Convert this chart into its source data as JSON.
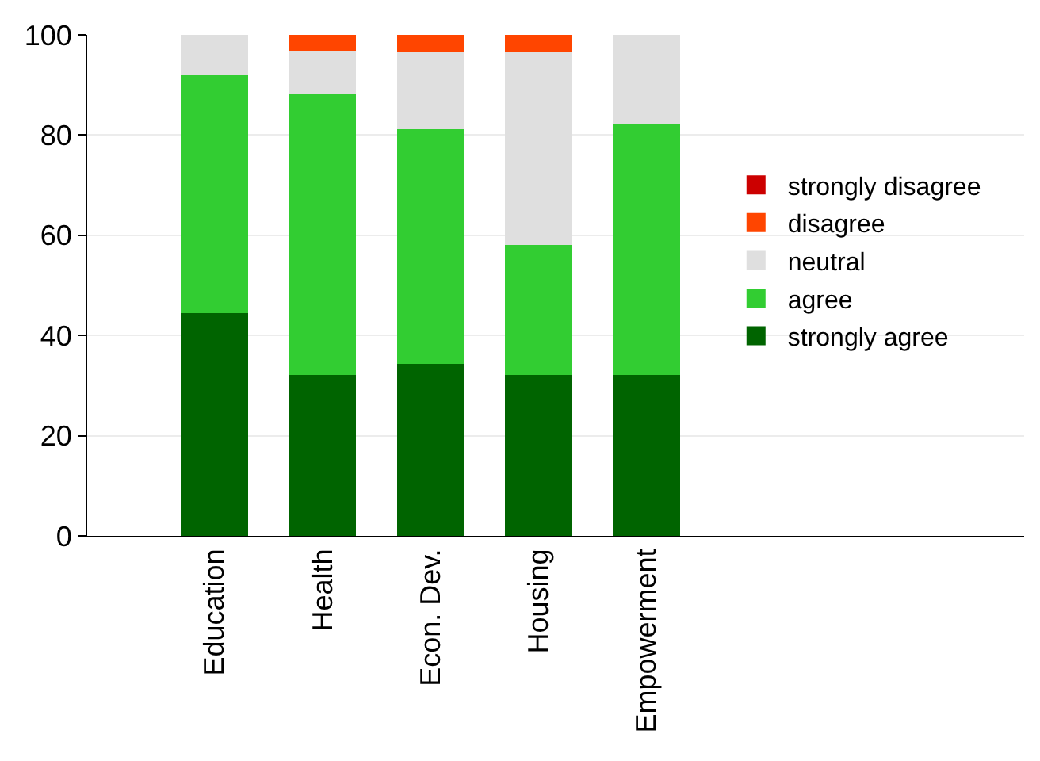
{
  "chart_data": {
    "type": "bar",
    "stacked": true,
    "categories": [
      "Education",
      "Health",
      "Econ. Dev.",
      "Housing",
      "Empowerment"
    ],
    "series": [
      {
        "name": "strongly agree",
        "color": "#006400",
        "values": [
          44.5,
          32.2,
          34.3,
          32.1,
          32.2
        ]
      },
      {
        "name": "agree",
        "color": "#32cd32",
        "values": [
          47.5,
          55.9,
          46.9,
          25.9,
          50.1
        ]
      },
      {
        "name": "neutral",
        "color": "#dfdfdf",
        "values": [
          8,
          8.7,
          15.5,
          38.5,
          17.7
        ]
      },
      {
        "name": "disagree",
        "color": "#ff4500",
        "values": [
          0,
          3.2,
          3.3,
          3.5,
          0
        ]
      },
      {
        "name": "strongly disagree",
        "color": "#cc0000",
        "values": [
          0,
          0,
          0,
          0,
          0
        ]
      }
    ],
    "ylim": [
      0,
      100
    ],
    "yticks": [
      0,
      20,
      40,
      60,
      80,
      100
    ],
    "grid": "y",
    "legend": "right"
  }
}
